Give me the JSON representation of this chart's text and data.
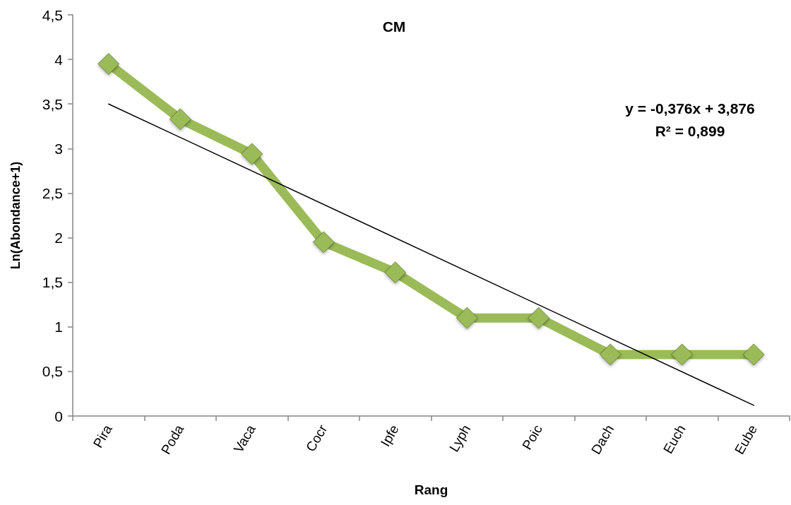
{
  "chart_data": {
    "type": "line",
    "title": "CM",
    "xlabel": "Rang",
    "ylabel": "Ln(Abondance+1)",
    "categories": [
      "Pira",
      "Poda",
      "Vaca",
      "Cocr",
      "Ipfe",
      "Lyph",
      "Poic",
      "Dach",
      "Euch",
      "Eube"
    ],
    "marker": "diamond",
    "series": [
      {
        "color": "#9bbb59",
        "values": [
          3.95,
          3.33,
          2.94,
          1.95,
          1.61,
          1.1,
          1.1,
          0.69,
          0.69,
          0.69
        ]
      },
      {
        "type": "line",
        "x": [
          "Pira",
          "Eube"
        ],
        "values": [
          3.5,
          0.12
        ],
        "color": "#000000",
        "marker": "none"
      }
    ],
    "ylim": [
      0,
      4.5
    ],
    "yticks": [
      0,
      {
        "value": 0.5,
        "label": "0,5"
      },
      1,
      {
        "value": 1.5,
        "label": "1,5"
      },
      2,
      {
        "value": 2.5,
        "label": "2,5"
      },
      3,
      {
        "value": 3.5,
        "label": "3,5"
      },
      4,
      {
        "value": 4.5,
        "label": "4,5"
      }
    ],
    "annotations": [
      "y = -0,376x + 3,876",
      "R² = 0,899"
    ]
  }
}
